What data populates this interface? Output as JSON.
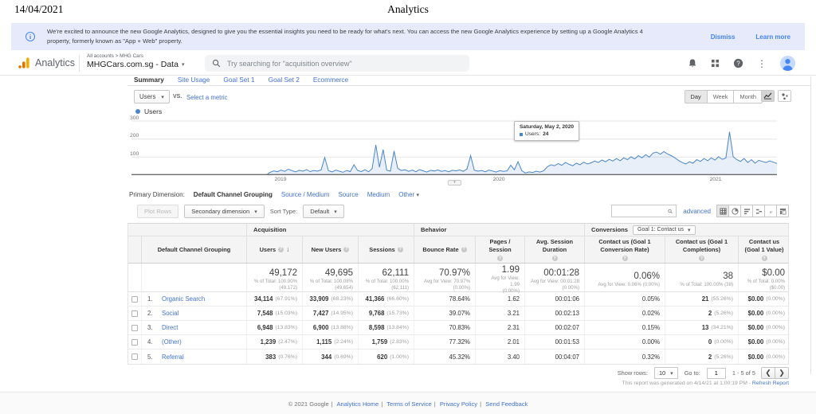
{
  "print_header": {
    "date": "14/04/2021",
    "title": "Analytics"
  },
  "banner": {
    "text": "We're excited to announce the new Google Analytics, designed to give you the essential insights you need to be ready for what's next. You can access the new Google Analytics experience by setting up a Google Analytics 4 property, formerly known as \"App + Web\" property.",
    "dismiss": "Dismiss",
    "learn_more": "Learn more"
  },
  "header": {
    "logo_text": "Analytics",
    "breadcrumb": "All accounts > MHG Cars",
    "property_name": "MHGCars.com.sg - Data",
    "search_placeholder": "Try searching for \"acquisition overview\""
  },
  "tabs": [
    {
      "label": "Summary",
      "active": true
    },
    {
      "label": "Site Usage",
      "active": false
    },
    {
      "label": "Goal Set 1",
      "active": false
    },
    {
      "label": "Goal Set 2",
      "active": false
    },
    {
      "label": "Ecommerce",
      "active": false
    }
  ],
  "controls": {
    "metric_selected": "Users",
    "vs_label": "vs.",
    "select_metric": "Select a metric",
    "granularity": {
      "day": "Day",
      "week": "Week",
      "month": "Month",
      "active": "Day"
    }
  },
  "chart": {
    "type": "line",
    "legend": "Users",
    "series_name": "Users",
    "x_ticks": [
      "2019",
      "2020",
      "2021"
    ],
    "y_ticks": [
      300,
      200,
      100
    ],
    "ylim": [
      0,
      300
    ],
    "values": [
      1,
      1,
      1,
      1,
      1,
      1,
      1,
      1,
      1,
      1,
      1,
      1,
      1,
      1,
      1,
      1,
      1,
      1,
      1,
      1,
      1,
      1,
      1,
      1,
      1,
      1,
      1,
      1,
      1,
      1,
      1,
      1,
      1,
      1,
      1,
      1,
      1,
      1,
      16,
      24,
      19,
      28,
      21,
      33,
      25,
      18,
      27,
      22,
      31,
      20,
      26,
      22,
      29,
      98,
      25,
      18,
      28,
      22,
      16,
      26,
      20,
      58,
      26,
      20,
      30,
      19,
      36,
      168,
      44,
      142,
      28,
      22,
      134,
      38,
      26,
      30,
      21,
      28,
      19,
      31,
      24,
      17,
      27,
      23,
      29,
      21,
      25,
      19,
      27,
      24,
      29,
      21,
      34,
      108,
      28,
      22,
      26,
      19,
      28,
      23,
      17,
      25,
      21,
      24,
      55,
      30,
      75,
      25,
      12,
      18,
      15,
      22,
      17,
      24,
      46,
      58,
      52,
      64,
      55,
      70,
      60,
      52,
      66,
      58,
      72,
      62,
      68,
      78,
      70,
      84,
      74,
      88,
      78,
      92,
      80,
      96,
      86,
      102,
      90,
      108,
      96,
      114,
      100,
      122,
      128,
      116,
      130,
      118,
      108,
      96,
      82,
      70,
      62,
      74,
      66,
      86,
      76,
      92,
      80,
      96,
      84,
      102,
      88,
      95,
      240,
      102,
      86,
      76,
      92,
      70,
      86,
      66,
      82,
      76,
      70,
      79,
      72,
      65
    ]
  },
  "tooltip": {
    "date": "Saturday, May 2, 2020",
    "series": "Users:",
    "value": "24"
  },
  "primary_dimension": {
    "label": "Primary Dimension:",
    "selected": "Default Channel Grouping",
    "options": [
      "Source / Medium",
      "Source",
      "Medium",
      "Other"
    ]
  },
  "toolbar": {
    "plot_rows": "Plot Rows",
    "secondary_dimension": "Secondary dimension",
    "sort_type_label": "Sort Type:",
    "sort_type_value": "Default",
    "advanced": "advanced"
  },
  "table": {
    "groups": {
      "acquisition": "Acquisition",
      "behavior": "Behavior",
      "conversions": "Conversions",
      "goal_select": "Goal 1: Contact us"
    },
    "columns": {
      "dimension": "Default Channel Grouping",
      "users": "Users",
      "new_users": "New Users",
      "sessions": "Sessions",
      "bounce_rate": "Bounce Rate",
      "pages_session": "Pages / Session",
      "avg_duration": "Avg. Session Duration",
      "conv_rate": "Contact us (Goal 1 Conversion Rate)",
      "completions": "Contact us (Goal 1 Completions)",
      "goal_value": "Contact us (Goal 1 Value)"
    },
    "totals": {
      "users": {
        "value": "49,172",
        "sub1": "% of Total: 100.00%",
        "sub2": "(49,172)"
      },
      "new_users": {
        "value": "49,695",
        "sub1": "% of Total: 100.08%",
        "sub2": "(49,654)"
      },
      "sessions": {
        "value": "62,111",
        "sub1": "% of Total: 100.00%",
        "sub2": "(62,111)"
      },
      "bounce_rate": {
        "value": "70.97%",
        "sub1": "Avg for View: 70.97%",
        "sub2": "(0.00%)"
      },
      "pages_session": {
        "value": "1.99",
        "sub1": "Avg for View: 1.99",
        "sub2": "(0.00%)"
      },
      "avg_duration": {
        "value": "00:01:28",
        "sub1": "Avg for View: 00:01:28",
        "sub2": "(0.00%)"
      },
      "conv_rate": {
        "value": "0.06%",
        "sub1": "Avg for View: 0.06% (0.00%)",
        "sub2": ""
      },
      "completions": {
        "value": "38",
        "sub1": "% of Total: 100.00% (38)",
        "sub2": ""
      },
      "goal_value": {
        "value": "$0.00",
        "sub1": "% of Total: 0.00% ($0.00)",
        "sub2": ""
      }
    },
    "rows": [
      {
        "index": "1.",
        "channel": "Organic Search",
        "users": "34,114",
        "users_pct": "(67.91%)",
        "new_users": "33,909",
        "new_users_pct": "(68.23%)",
        "sessions": "41,366",
        "sessions_pct": "(66.60%)",
        "bounce_rate": "78.64%",
        "pages_session": "1.62",
        "avg_duration": "00:01:06",
        "conv_rate": "0.05%",
        "completions": "21",
        "completions_pct": "(55.26%)",
        "value": "$0.00",
        "value_pct": "(0.00%)"
      },
      {
        "index": "2.",
        "channel": "Social",
        "users": "7,548",
        "users_pct": "(15.03%)",
        "new_users": "7,427",
        "new_users_pct": "(14.95%)",
        "sessions": "9,768",
        "sessions_pct": "(15.73%)",
        "bounce_rate": "39.07%",
        "pages_session": "3.21",
        "avg_duration": "00:02:13",
        "conv_rate": "0.02%",
        "completions": "2",
        "completions_pct": "(5.26%)",
        "value": "$0.00",
        "value_pct": "(0.00%)"
      },
      {
        "index": "3.",
        "channel": "Direct",
        "users": "6,948",
        "users_pct": "(13.83%)",
        "new_users": "6,900",
        "new_users_pct": "(13.88%)",
        "sessions": "8,598",
        "sessions_pct": "(13.84%)",
        "bounce_rate": "70.83%",
        "pages_session": "2.31",
        "avg_duration": "00:02:07",
        "conv_rate": "0.15%",
        "completions": "13",
        "completions_pct": "(34.21%)",
        "value": "$0.00",
        "value_pct": "(0.00%)"
      },
      {
        "index": "4.",
        "channel": "(Other)",
        "users": "1,239",
        "users_pct": "(2.47%)",
        "new_users": "1,115",
        "new_users_pct": "(2.24%)",
        "sessions": "1,759",
        "sessions_pct": "(2.83%)",
        "bounce_rate": "77.32%",
        "pages_session": "2.01",
        "avg_duration": "00:01:53",
        "conv_rate": "0.00%",
        "completions": "0",
        "completions_pct": "(0.00%)",
        "value": "$0.00",
        "value_pct": "(0.00%)"
      },
      {
        "index": "5.",
        "channel": "Referral",
        "users": "383",
        "users_pct": "(0.76%)",
        "new_users": "344",
        "new_users_pct": "(0.69%)",
        "sessions": "620",
        "sessions_pct": "(1.00%)",
        "bounce_rate": "45.32%",
        "pages_session": "3.40",
        "avg_duration": "00:04:07",
        "conv_rate": "0.32%",
        "completions": "2",
        "completions_pct": "(5.26%)",
        "value": "$0.00",
        "value_pct": "(0.00%)"
      }
    ]
  },
  "pagination": {
    "show_rows_label": "Show rows:",
    "show_rows_value": "10",
    "goto_label": "Go to:",
    "goto_value": "1",
    "range": "1 - 5 of 5"
  },
  "report_note": {
    "text": "This report was generated on 4/14/21 at 1:00:19 PM -",
    "refresh": "Refresh Report"
  },
  "footer": {
    "copyright": "© 2021 Google",
    "links": [
      "Analytics Home",
      "Terms of Service",
      "Privacy Policy",
      "Send Feedback"
    ]
  },
  "colors": {
    "link_blue": "#4272d7",
    "accent_blue": "#4285f4",
    "chart_line": "#4a86c8",
    "logo_orange": "#f9ab00",
    "banner_bg": "#e7eafa"
  }
}
